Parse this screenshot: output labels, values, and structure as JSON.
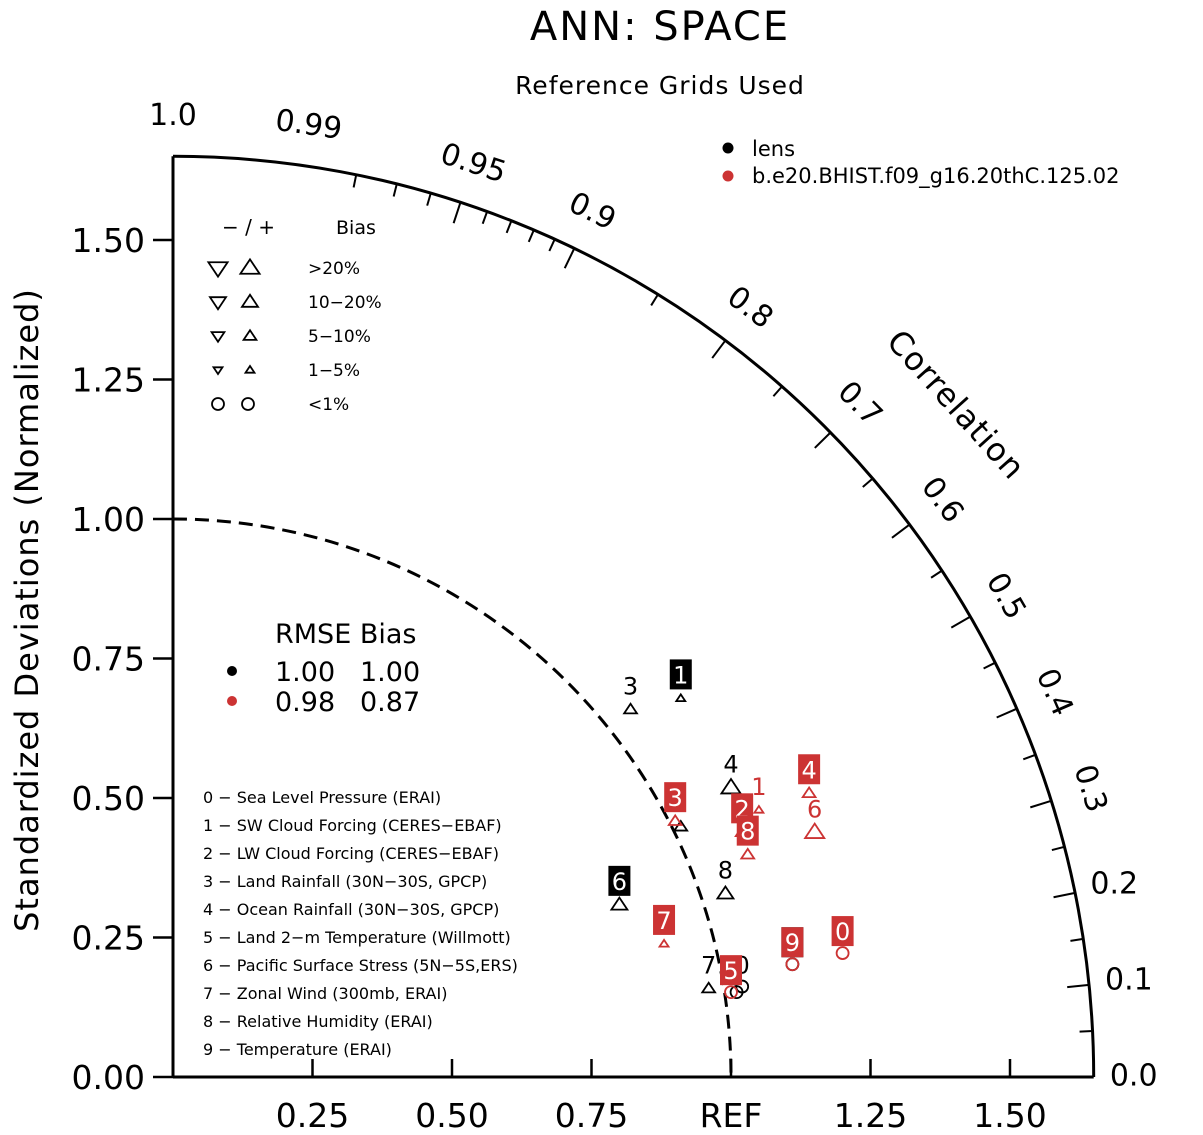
{
  "chart_data": {
    "type": "scatter",
    "subtype": "taylor-diagram",
    "title": "ANN: SPACE",
    "subtitle": "Reference Grids Used",
    "ylabel": "Standardized Deviations (Normalized)",
    "corr_label": "Correlation",
    "ref_label": "REF",
    "std_range": [
      0,
      1.65
    ],
    "y_ticks": [
      "0.00",
      "0.25",
      "0.50",
      "0.75",
      "1.00",
      "1.25",
      "1.50"
    ],
    "x_ticks": [
      "0.25",
      "0.50",
      "0.75",
      "1.25",
      "1.50"
    ],
    "corr_ticks": [
      "0.0",
      "0.1",
      "0.2",
      "0.3",
      "0.4",
      "0.5",
      "0.6",
      "0.7",
      "0.8",
      "0.9",
      "0.95",
      "0.99",
      "1.0"
    ],
    "series": [
      {
        "name": "lens",
        "color": "#000000"
      },
      {
        "name": "b.e20.BHIST.f09_g16.20thC.125.02",
        "color": "#cc3333"
      }
    ],
    "bias_legend": {
      "header_signs": "− / +",
      "header_label": "Bias",
      "rows": [
        {
          "label": ">20%",
          "shape": "triangle",
          "size": 3
        },
        {
          "label": "10−20%",
          "shape": "triangle",
          "size": 2.5
        },
        {
          "label": "5−10%",
          "shape": "triangle",
          "size": 2
        },
        {
          "label": "1−5%",
          "shape": "triangle",
          "size": 1.4
        },
        {
          "label": "<1%",
          "shape": "circle",
          "size": 2
        }
      ]
    },
    "rmse_table": {
      "header": "RMSE Bias",
      "rows": [
        {
          "rmse": "1.00",
          "bias": "1.00",
          "color": "#000000"
        },
        {
          "rmse": "0.98",
          "bias": "0.87",
          "color": "#cc3333"
        }
      ]
    },
    "variables": [
      "0 − Sea Level Pressure (ERAI)",
      "1 − SW Cloud Forcing (CERES−EBAF)",
      "2 − LW Cloud Forcing (CERES−EBAF)",
      "3 − Land Rainfall (30N−30S, GPCP)",
      "4 − Ocean Rainfall (30N−30S, GPCP)",
      "5 − Land 2−m Temperature (Willmott)",
      "6 − Pacific Surface Stress (5N−5S,ERS)",
      "7 − Zonal Wind (300mb, ERAI)",
      "8 − Relative Humidity (ERAI)",
      "9 − Temperature (ERAI)"
    ],
    "points": [
      {
        "series": 0,
        "label": "0",
        "x": 1.02,
        "y": 0.18,
        "marker": "circle",
        "dir": "none",
        "size": 2,
        "boxed": false
      },
      {
        "series": 0,
        "label": "1",
        "x": 0.91,
        "y": 0.7,
        "marker": "triangle",
        "dir": "up",
        "size": 1.4,
        "boxed": true
      },
      {
        "series": 0,
        "label": "2",
        "x": 0.91,
        "y": 0.47,
        "marker": "triangle",
        "dir": "up",
        "size": 2,
        "boxed": false
      },
      {
        "series": 0,
        "label": "3",
        "x": 0.82,
        "y": 0.68,
        "marker": "triangle",
        "dir": "up",
        "size": 2,
        "boxed": false
      },
      {
        "series": 0,
        "label": "4",
        "x": 1.0,
        "y": 0.54,
        "marker": "triangle",
        "dir": "up",
        "size": 3,
        "boxed": false
      },
      {
        "series": 0,
        "label": "5",
        "x": 1.01,
        "y": 0.17,
        "marker": "circle",
        "dir": "none",
        "size": 2,
        "boxed": false
      },
      {
        "series": 0,
        "label": "6",
        "x": 0.8,
        "y": 0.33,
        "marker": "triangle",
        "dir": "up",
        "size": 2.5,
        "boxed": true
      },
      {
        "series": 0,
        "label": "7",
        "x": 0.96,
        "y": 0.18,
        "marker": "triangle",
        "dir": "up",
        "size": 2,
        "boxed": false
      },
      {
        "series": 0,
        "label": "8",
        "x": 0.99,
        "y": 0.35,
        "marker": "triangle",
        "dir": "up",
        "size": 2.5,
        "boxed": false
      },
      {
        "series": 0,
        "label": "9",
        "x": 1.11,
        "y": 0.22,
        "marker": "circle",
        "dir": "none",
        "size": 2,
        "boxed": true
      },
      {
        "series": 1,
        "label": "0",
        "x": 1.2,
        "y": 0.24,
        "marker": "circle",
        "dir": "none",
        "size": 2,
        "boxed": true
      },
      {
        "series": 1,
        "label": "1",
        "x": 1.05,
        "y": 0.5,
        "marker": "triangle",
        "dir": "up",
        "size": 1.4,
        "boxed": false
      },
      {
        "series": 1,
        "label": "2",
        "x": 1.02,
        "y": 0.46,
        "marker": "triangle",
        "dir": "up",
        "size": 2,
        "boxed": true
      },
      {
        "series": 1,
        "label": "3",
        "x": 0.9,
        "y": 0.48,
        "marker": "triangle",
        "dir": "up",
        "size": 2,
        "boxed": true
      },
      {
        "series": 1,
        "label": "4",
        "x": 1.14,
        "y": 0.53,
        "marker": "triangle",
        "dir": "up",
        "size": 2,
        "boxed": true
      },
      {
        "series": 1,
        "label": "5",
        "x": 1.0,
        "y": 0.17,
        "marker": "circle",
        "dir": "none",
        "size": 2,
        "boxed": true
      },
      {
        "series": 1,
        "label": "6",
        "x": 1.15,
        "y": 0.46,
        "marker": "triangle",
        "dir": "up",
        "size": 3,
        "boxed": false
      },
      {
        "series": 1,
        "label": "7",
        "x": 0.88,
        "y": 0.26,
        "marker": "triangle",
        "dir": "up",
        "size": 1.4,
        "boxed": true
      },
      {
        "series": 1,
        "label": "8",
        "x": 1.03,
        "y": 0.42,
        "marker": "triangle",
        "dir": "up",
        "size": 2,
        "boxed": true
      },
      {
        "series": 1,
        "label": "9",
        "x": 1.11,
        "y": 0.22,
        "marker": "circle",
        "dir": "none",
        "size": 2,
        "boxed": true
      }
    ]
  }
}
